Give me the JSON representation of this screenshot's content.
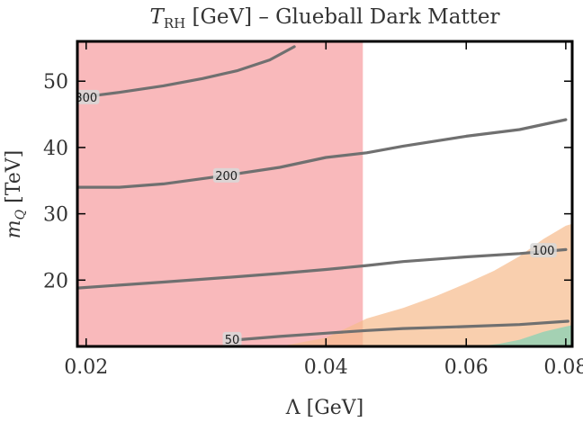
{
  "chart_data": {
    "type": "contour",
    "title": {
      "symbol": "T",
      "subscript": "RH",
      "rest": " [GeV]  –  Glueball Dark Matter"
    },
    "xlabel": "Λ [GeV]",
    "ylabel": {
      "symbol": "m",
      "subscript": "Q",
      "rest": " [TeV]"
    },
    "xscale": "log",
    "xlim": [
      0.0195,
      0.0815
    ],
    "ylim": [
      10,
      56
    ],
    "x_ticks": [
      {
        "value": 0.02,
        "label": "0.02"
      },
      {
        "value": 0.04,
        "label": "0.04"
      },
      {
        "value": 0.06,
        "label": "0.06"
      },
      {
        "value": 0.08,
        "label": "0.08"
      }
    ],
    "y_ticks": [
      {
        "value": 20,
        "label": "20"
      },
      {
        "value": 30,
        "label": "30"
      },
      {
        "value": 40,
        "label": "40"
      },
      {
        "value": 50,
        "label": "50"
      }
    ],
    "grid": false,
    "regions": [
      {
        "kind": "excluded-left",
        "x_max": 0.0445,
        "color": "#f7a5a8",
        "opacity": 0.78
      },
      {
        "kind": "shaded-band",
        "color": "#f7ba8c",
        "opacity": 0.7,
        "upper_boundary": [
          [
            0.0195,
            10
          ],
          [
            0.035,
            10
          ],
          [
            0.04,
            11.3
          ],
          [
            0.045,
            14.2
          ],
          [
            0.05,
            15.8
          ],
          [
            0.055,
            17.6
          ],
          [
            0.06,
            19.5
          ],
          [
            0.065,
            21.4
          ],
          [
            0.07,
            23.6
          ],
          [
            0.075,
            26.2
          ],
          [
            0.08,
            28.2
          ],
          [
            0.0815,
            28.5
          ]
        ]
      },
      {
        "kind": "shaded-corner",
        "color": "#8fd1b4",
        "opacity": 0.8,
        "upper_boundary": [
          [
            0.062,
            10
          ],
          [
            0.066,
            10.4
          ],
          [
            0.07,
            11.0
          ],
          [
            0.075,
            12.2
          ],
          [
            0.08,
            13.0
          ],
          [
            0.0815,
            13.2
          ]
        ]
      }
    ],
    "series": [
      {
        "label": "300",
        "label_at": [
          0.02,
          47.6
        ],
        "points": [
          [
            0.0195,
            47.5
          ],
          [
            0.022,
            48.3
          ],
          [
            0.025,
            49.3
          ],
          [
            0.028,
            50.4
          ],
          [
            0.031,
            51.6
          ],
          [
            0.034,
            53.2
          ],
          [
            0.0365,
            55.2
          ]
        ]
      },
      {
        "label": "200",
        "label_at": [
          0.03,
          35.8
        ],
        "points": [
          [
            0.0195,
            34.0
          ],
          [
            0.022,
            34.0
          ],
          [
            0.025,
            34.5
          ],
          [
            0.03,
            35.8
          ],
          [
            0.035,
            37.0
          ],
          [
            0.04,
            38.5
          ],
          [
            0.045,
            39.2
          ],
          [
            0.05,
            40.2
          ],
          [
            0.06,
            41.7
          ],
          [
            0.07,
            42.7
          ],
          [
            0.08,
            44.2
          ]
        ]
      },
      {
        "label": "100",
        "label_at": [
          0.075,
          24.5
        ],
        "points": [
          [
            0.0195,
            18.8
          ],
          [
            0.025,
            19.7
          ],
          [
            0.03,
            20.4
          ],
          [
            0.035,
            21.0
          ],
          [
            0.04,
            21.6
          ],
          [
            0.045,
            22.2
          ],
          [
            0.05,
            22.8
          ],
          [
            0.06,
            23.5
          ],
          [
            0.07,
            24.0
          ],
          [
            0.08,
            24.6
          ]
        ]
      },
      {
        "label": "50",
        "label_at": [
          0.0305,
          11.1
        ],
        "points": [
          [
            0.031,
            11.0
          ],
          [
            0.035,
            11.5
          ],
          [
            0.04,
            12.0
          ],
          [
            0.045,
            12.4
          ],
          [
            0.05,
            12.7
          ],
          [
            0.06,
            13.0
          ],
          [
            0.07,
            13.3
          ],
          [
            0.0805,
            13.8
          ]
        ]
      }
    ],
    "colors": {
      "contour": "#707070",
      "frame": "#000000",
      "label_bg": "#d8d8d8"
    }
  }
}
